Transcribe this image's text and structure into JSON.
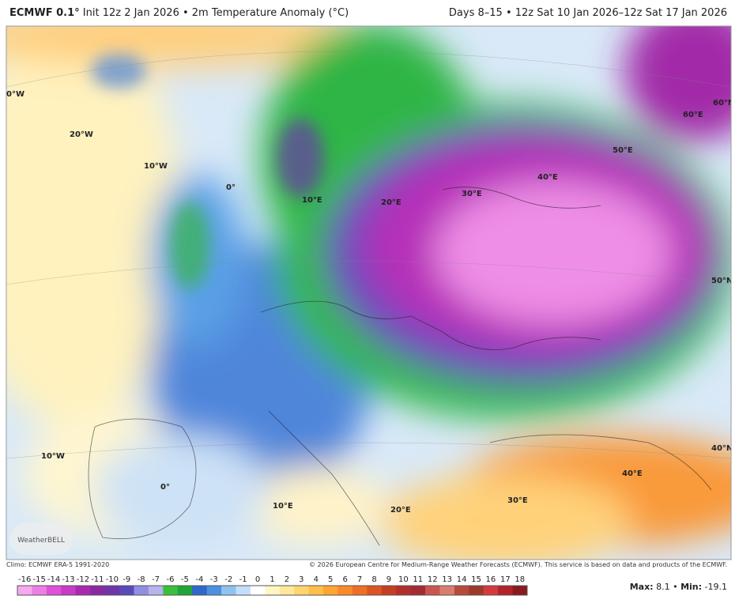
{
  "header": {
    "model": "ECMWF 0.1°",
    "description": "Init 12z 2 Jan 2026 • 2m Temperature Anomaly (°C)",
    "period": "Days 8–15 • 12z Sat 10 Jan 2026–12z Sat 17 Jan 2026"
  },
  "map_labels": [
    "0°W",
    "20°W",
    "10°W",
    "0°",
    "10°E",
    "20°E",
    "30°E",
    "40°E",
    "50°E",
    "60°E",
    "60°N",
    "50°N",
    "10°W",
    "0°",
    "10°E",
    "20°E",
    "30°E",
    "40°E",
    "40°N"
  ],
  "logo": "WeatherBELL",
  "footer": {
    "climo": "Climo: ECMWF ERA-5 1991-2020",
    "copyright": "© 2026 European Centre for Medium-Range Weather Forecasts (ECMWF). This service is based on data and products of the ECMWF."
  },
  "colorbar": {
    "ticks": [
      -16,
      -15,
      -14,
      -13,
      -12,
      -11,
      -10,
      -9,
      -8,
      -7,
      -6,
      -5,
      -4,
      -3,
      -2,
      -1,
      0,
      1,
      2,
      3,
      4,
      5,
      6,
      7,
      8,
      9,
      10,
      11,
      12,
      13,
      14,
      15,
      16,
      17,
      18
    ],
    "colors": [
      "#f5a9f0",
      "#ec7fe6",
      "#e050d8",
      "#c83ac7",
      "#a72aaf",
      "#8a2a9e",
      "#6e36a8",
      "#5a49b8",
      "#8f8ee0",
      "#b7b3ec",
      "#3cbf3c",
      "#1fa53a",
      "#2f68c8",
      "#4d8fe0",
      "#8ec2f0",
      "#c2defa",
      "#ffffff",
      "#fff6c4",
      "#ffe89a",
      "#ffd56e",
      "#ffc04a",
      "#ffa531",
      "#f98a2a",
      "#ee6e25",
      "#dc5424",
      "#c63e22",
      "#b22f2a",
      "#a32b33",
      "#c9574f",
      "#d97d6f",
      "#b84a3a",
      "#9c3a2c",
      "#d63a3a",
      "#b2232a",
      "#8a1a1f"
    ]
  },
  "stats": {
    "max_label": "Max:",
    "max": 8.1,
    "separator": "•",
    "min_label": "Min:",
    "min": -19.1
  }
}
